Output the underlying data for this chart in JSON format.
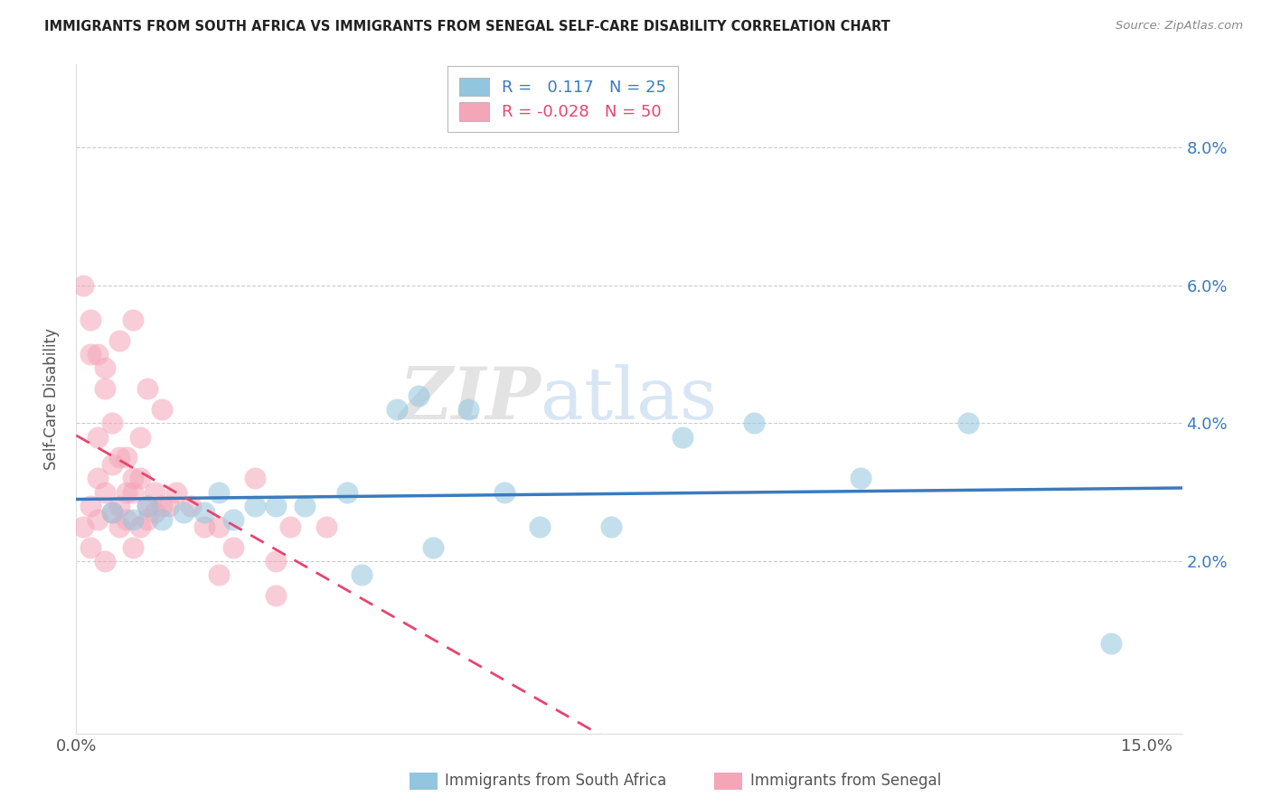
{
  "title": "IMMIGRANTS FROM SOUTH AFRICA VS IMMIGRANTS FROM SENEGAL SELF-CARE DISABILITY CORRELATION CHART",
  "source": "Source: ZipAtlas.com",
  "xlabel_blue": "Immigrants from South Africa",
  "xlabel_pink": "Immigrants from Senegal",
  "ylabel": "Self-Care Disability",
  "R_blue": 0.117,
  "N_blue": 25,
  "R_pink": -0.028,
  "N_pink": 50,
  "xlim": [
    0.0,
    0.155
  ],
  "ylim": [
    -0.005,
    0.092
  ],
  "yticks": [
    0.02,
    0.04,
    0.06,
    0.08
  ],
  "ytick_labels": [
    "2.0%",
    "4.0%",
    "6.0%",
    "8.0%"
  ],
  "xticks": [
    0.0,
    0.15
  ],
  "xtick_labels": [
    "0.0%",
    "15.0%"
  ],
  "color_blue": "#92c5de",
  "color_pink": "#f4a5b8",
  "color_blue_line": "#3a7bbf",
  "color_pink_line": "#e8446e",
  "watermark_zip": "ZIP",
  "watermark_atlas": "atlas",
  "blue_scatter_x": [
    0.005,
    0.008,
    0.01,
    0.012,
    0.015,
    0.018,
    0.02,
    0.022,
    0.025,
    0.028,
    0.032,
    0.038,
    0.045,
    0.048,
    0.055,
    0.06,
    0.065,
    0.075,
    0.085,
    0.095,
    0.04,
    0.05,
    0.11,
    0.125,
    0.145
  ],
  "blue_scatter_y": [
    0.027,
    0.026,
    0.028,
    0.026,
    0.027,
    0.027,
    0.03,
    0.026,
    0.028,
    0.028,
    0.028,
    0.03,
    0.042,
    0.044,
    0.042,
    0.03,
    0.025,
    0.025,
    0.038,
    0.04,
    0.018,
    0.022,
    0.032,
    0.04,
    0.008
  ],
  "pink_scatter_x": [
    0.002,
    0.003,
    0.004,
    0.005,
    0.006,
    0.007,
    0.008,
    0.009,
    0.01,
    0.011,
    0.002,
    0.004,
    0.006,
    0.008,
    0.01,
    0.012,
    0.003,
    0.005,
    0.007,
    0.009,
    0.001,
    0.003,
    0.005,
    0.007,
    0.009,
    0.002,
    0.004,
    0.006,
    0.008,
    0.01,
    0.012,
    0.014,
    0.016,
    0.018,
    0.02,
    0.022,
    0.025,
    0.028,
    0.03,
    0.035,
    0.001,
    0.002,
    0.003,
    0.004,
    0.006,
    0.008,
    0.011,
    0.013,
    0.02,
    0.028
  ],
  "pink_scatter_y": [
    0.028,
    0.032,
    0.03,
    0.034,
    0.028,
    0.03,
    0.03,
    0.032,
    0.028,
    0.027,
    0.05,
    0.048,
    0.052,
    0.055,
    0.045,
    0.042,
    0.038,
    0.04,
    0.035,
    0.038,
    0.025,
    0.026,
    0.027,
    0.026,
    0.025,
    0.022,
    0.02,
    0.025,
    0.022,
    0.026,
    0.028,
    0.03,
    0.028,
    0.025,
    0.025,
    0.022,
    0.032,
    0.015,
    0.025,
    0.025,
    0.06,
    0.055,
    0.05,
    0.045,
    0.035,
    0.032,
    0.03,
    0.028,
    0.018,
    0.02
  ]
}
